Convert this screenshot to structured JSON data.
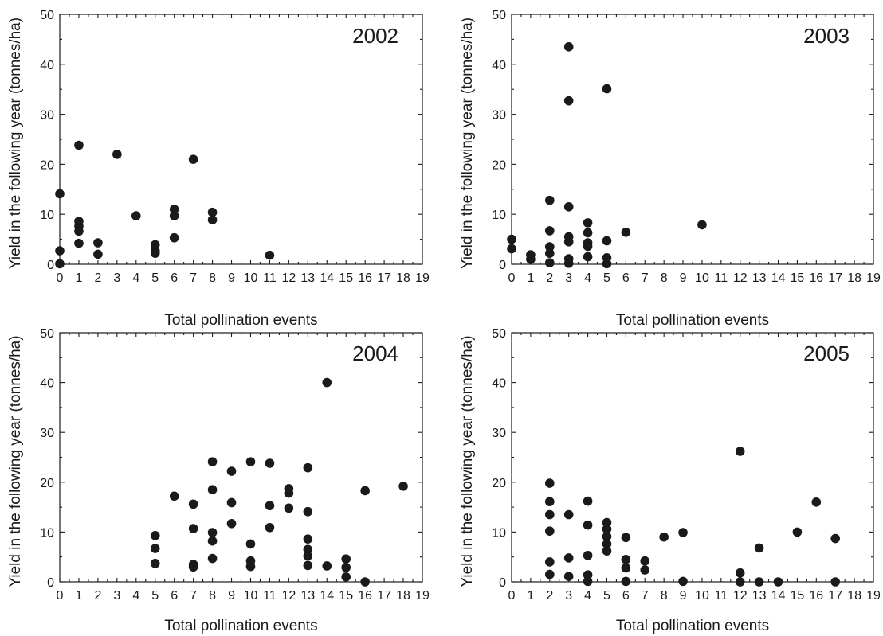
{
  "chart_data": [
    {
      "type": "scatter",
      "title": "2002",
      "xlabel": "Total pollination events",
      "ylabel": "Yield in the following year (tonnes/ha)",
      "xlim": [
        0,
        19
      ],
      "ylim": [
        0,
        50
      ],
      "xticks": [
        "0",
        "1",
        "2",
        "3",
        "4",
        "5",
        "6",
        "7",
        "8",
        "9",
        "10",
        "11",
        "12",
        "13",
        "14",
        "15",
        "16",
        "17",
        "18",
        "19"
      ],
      "yticks": [
        "0",
        "10",
        "20",
        "30",
        "40",
        "50"
      ],
      "points": [
        {
          "x": 0,
          "y": 14.1
        },
        {
          "x": 0,
          "y": 2.7
        },
        {
          "x": 0,
          "y": 0.1
        },
        {
          "x": 1,
          "y": 23.8
        },
        {
          "x": 1,
          "y": 8.6
        },
        {
          "x": 1,
          "y": 7.6
        },
        {
          "x": 1,
          "y": 6.6
        },
        {
          "x": 1,
          "y": 4.2
        },
        {
          "x": 2,
          "y": 4.3
        },
        {
          "x": 2,
          "y": 2.0
        },
        {
          "x": 3,
          "y": 22.0
        },
        {
          "x": 4,
          "y": 9.7
        },
        {
          "x": 5,
          "y": 3.9
        },
        {
          "x": 5,
          "y": 2.7
        },
        {
          "x": 5,
          "y": 2.2
        },
        {
          "x": 6,
          "y": 11.0
        },
        {
          "x": 6,
          "y": 9.7
        },
        {
          "x": 6,
          "y": 5.3
        },
        {
          "x": 7,
          "y": 21.0
        },
        {
          "x": 8,
          "y": 10.4
        },
        {
          "x": 8,
          "y": 8.9
        },
        {
          "x": 11,
          "y": 1.8
        }
      ]
    },
    {
      "type": "scatter",
      "title": "2003",
      "xlabel": "Total pollination events",
      "ylabel": "Yield in the following year (tonnes/ha)",
      "xlim": [
        0,
        19
      ],
      "ylim": [
        0,
        50
      ],
      "xticks": [
        "0",
        "1",
        "2",
        "3",
        "4",
        "5",
        "6",
        "7",
        "8",
        "9",
        "10",
        "11",
        "12",
        "13",
        "14",
        "15",
        "16",
        "17",
        "18",
        "19"
      ],
      "yticks": [
        "0",
        "10",
        "20",
        "30",
        "40",
        "50"
      ],
      "points": [
        {
          "x": 0,
          "y": 5.0
        },
        {
          "x": 0,
          "y": 3.1
        },
        {
          "x": 1,
          "y": 1.9
        },
        {
          "x": 1,
          "y": 1.0
        },
        {
          "x": 2,
          "y": 12.8
        },
        {
          "x": 2,
          "y": 6.7
        },
        {
          "x": 2,
          "y": 3.5
        },
        {
          "x": 2,
          "y": 2.2
        },
        {
          "x": 2,
          "y": 0.3
        },
        {
          "x": 3,
          "y": 43.5
        },
        {
          "x": 3,
          "y": 32.7
        },
        {
          "x": 3,
          "y": 11.5
        },
        {
          "x": 3,
          "y": 5.5
        },
        {
          "x": 3,
          "y": 4.5
        },
        {
          "x": 3,
          "y": 1.1
        },
        {
          "x": 3,
          "y": 0.2
        },
        {
          "x": 4,
          "y": 8.3
        },
        {
          "x": 4,
          "y": 6.3
        },
        {
          "x": 4,
          "y": 4.3
        },
        {
          "x": 4,
          "y": 3.6
        },
        {
          "x": 4,
          "y": 1.5
        },
        {
          "x": 5,
          "y": 35.1
        },
        {
          "x": 5,
          "y": 4.7
        },
        {
          "x": 5,
          "y": 1.3
        },
        {
          "x": 5,
          "y": 0.1
        },
        {
          "x": 6,
          "y": 6.4
        },
        {
          "x": 10,
          "y": 7.9
        }
      ]
    },
    {
      "type": "scatter",
      "title": "2004",
      "xlabel": "Total pollination events",
      "ylabel": "Yield in the following year (tonnes/ha)",
      "xlim": [
        0,
        19
      ],
      "ylim": [
        0,
        50
      ],
      "xticks": [
        "0",
        "1",
        "2",
        "3",
        "4",
        "5",
        "6",
        "7",
        "8",
        "9",
        "10",
        "11",
        "12",
        "13",
        "14",
        "15",
        "16",
        "17",
        "18",
        "19"
      ],
      "yticks": [
        "0",
        "10",
        "20",
        "30",
        "40",
        "50"
      ],
      "points": [
        {
          "x": 5,
          "y": 9.3
        },
        {
          "x": 5,
          "y": 6.7
        },
        {
          "x": 5,
          "y": 3.7
        },
        {
          "x": 6,
          "y": 17.2
        },
        {
          "x": 7,
          "y": 15.6
        },
        {
          "x": 7,
          "y": 10.7
        },
        {
          "x": 7,
          "y": 3.5
        },
        {
          "x": 7,
          "y": 3.0
        },
        {
          "x": 8,
          "y": 24.1
        },
        {
          "x": 8,
          "y": 18.5
        },
        {
          "x": 8,
          "y": 9.9
        },
        {
          "x": 8,
          "y": 8.2
        },
        {
          "x": 8,
          "y": 4.7
        },
        {
          "x": 9,
          "y": 22.2
        },
        {
          "x": 9,
          "y": 15.9
        },
        {
          "x": 9,
          "y": 11.7
        },
        {
          "x": 10,
          "y": 24.1
        },
        {
          "x": 10,
          "y": 7.6
        },
        {
          "x": 10,
          "y": 4.2
        },
        {
          "x": 10,
          "y": 3.1
        },
        {
          "x": 11,
          "y": 23.8
        },
        {
          "x": 11,
          "y": 15.3
        },
        {
          "x": 11,
          "y": 10.9
        },
        {
          "x": 12,
          "y": 18.7
        },
        {
          "x": 12,
          "y": 17.8
        },
        {
          "x": 12,
          "y": 14.8
        },
        {
          "x": 13,
          "y": 22.9
        },
        {
          "x": 13,
          "y": 14.1
        },
        {
          "x": 13,
          "y": 8.6
        },
        {
          "x": 13,
          "y": 6.5
        },
        {
          "x": 13,
          "y": 5.2
        },
        {
          "x": 13,
          "y": 3.3
        },
        {
          "x": 14,
          "y": 40.0
        },
        {
          "x": 14,
          "y": 3.2
        },
        {
          "x": 15,
          "y": 4.6
        },
        {
          "x": 15,
          "y": 2.9
        },
        {
          "x": 15,
          "y": 1.0
        },
        {
          "x": 16,
          "y": 18.3
        },
        {
          "x": 16,
          "y": 0.0
        },
        {
          "x": 18,
          "y": 19.2
        }
      ]
    },
    {
      "type": "scatter",
      "title": "2005",
      "xlabel": "Total pollination events",
      "ylabel": "Yield in the following year (tonnes/ha)",
      "xlim": [
        0,
        19
      ],
      "ylim": [
        0,
        50
      ],
      "xticks": [
        "0",
        "1",
        "2",
        "3",
        "4",
        "5",
        "6",
        "7",
        "8",
        "9",
        "10",
        "11",
        "12",
        "13",
        "14",
        "15",
        "16",
        "17",
        "18",
        "19"
      ],
      "yticks": [
        "0",
        "10",
        "20",
        "30",
        "40",
        "50"
      ],
      "points": [
        {
          "x": 2,
          "y": 19.8
        },
        {
          "x": 2,
          "y": 16.1
        },
        {
          "x": 2,
          "y": 13.5
        },
        {
          "x": 2,
          "y": 10.2
        },
        {
          "x": 2,
          "y": 4.0
        },
        {
          "x": 2,
          "y": 1.5
        },
        {
          "x": 3,
          "y": 13.5
        },
        {
          "x": 3,
          "y": 4.8
        },
        {
          "x": 3,
          "y": 1.1
        },
        {
          "x": 4,
          "y": 16.2
        },
        {
          "x": 4,
          "y": 11.4
        },
        {
          "x": 4,
          "y": 5.3
        },
        {
          "x": 4,
          "y": 1.4
        },
        {
          "x": 4,
          "y": 0.1
        },
        {
          "x": 5,
          "y": 11.9
        },
        {
          "x": 5,
          "y": 10.6
        },
        {
          "x": 5,
          "y": 9.1
        },
        {
          "x": 5,
          "y": 7.6
        },
        {
          "x": 5,
          "y": 6.2
        },
        {
          "x": 6,
          "y": 8.9
        },
        {
          "x": 6,
          "y": 4.5
        },
        {
          "x": 6,
          "y": 2.8
        },
        {
          "x": 6,
          "y": 0.1
        },
        {
          "x": 7,
          "y": 4.2
        },
        {
          "x": 7,
          "y": 2.4
        },
        {
          "x": 8,
          "y": 9.0
        },
        {
          "x": 9,
          "y": 9.9
        },
        {
          "x": 9,
          "y": 0.1
        },
        {
          "x": 12,
          "y": 26.2
        },
        {
          "x": 12,
          "y": 1.8
        },
        {
          "x": 12,
          "y": 0.0
        },
        {
          "x": 13,
          "y": 6.8
        },
        {
          "x": 13,
          "y": 0.0
        },
        {
          "x": 14,
          "y": 0.0
        },
        {
          "x": 15,
          "y": 10.0
        },
        {
          "x": 16,
          "y": 16.0
        },
        {
          "x": 17,
          "y": 8.7
        },
        {
          "x": 17,
          "y": 0.0
        }
      ]
    }
  ]
}
